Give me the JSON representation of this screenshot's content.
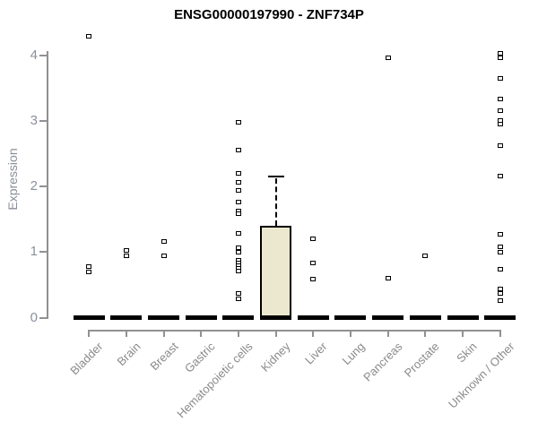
{
  "chart_data": {
    "type": "box",
    "title": "ENSG00000197990 - ZNF734P",
    "ylabel": "Expression",
    "xlabel": "",
    "ylim": [
      0,
      4
    ],
    "yticks": [
      0,
      1,
      2,
      3,
      4
    ],
    "grid": false,
    "categories": [
      "Bladder",
      "Brain",
      "Breast",
      "Gastric",
      "Hematopoietic cells",
      "Kidney",
      "Liver",
      "Lung",
      "Pancreas",
      "Prostate",
      "Skin",
      "Unknown / Other"
    ],
    "boxes": [
      {
        "category": "Bladder",
        "q1": 0,
        "median": 0,
        "q3": 0,
        "whisker_low": 0,
        "whisker_high": 0,
        "outliers": [
          4.29,
          0.78,
          0.7
        ]
      },
      {
        "category": "Brain",
        "q1": 0,
        "median": 0,
        "q3": 0,
        "whisker_low": 0,
        "whisker_high": 0,
        "outliers": [
          1.03,
          0.95
        ]
      },
      {
        "category": "Breast",
        "q1": 0,
        "median": 0,
        "q3": 0,
        "whisker_low": 0,
        "whisker_high": 0,
        "outliers": [
          1.16,
          0.94
        ]
      },
      {
        "category": "Gastric",
        "q1": 0,
        "median": 0,
        "q3": 0,
        "whisker_low": 0,
        "whisker_high": 0,
        "outliers": []
      },
      {
        "category": "Hematopoietic cells",
        "q1": 0,
        "median": 0,
        "q3": 0,
        "whisker_low": 0,
        "whisker_high": 0,
        "outliers": [
          2.98,
          2.56,
          2.2,
          2.06,
          1.94,
          1.76,
          1.63,
          1.59,
          1.29,
          1.07,
          1.0,
          0.88,
          0.83,
          0.79,
          0.75,
          0.71,
          0.37,
          0.29
        ]
      },
      {
        "category": "Kidney",
        "q1": 0,
        "median": 0,
        "q3": 1.4,
        "whisker_low": 0,
        "whisker_high": 2.16,
        "outliers": []
      },
      {
        "category": "Liver",
        "q1": 0,
        "median": 0,
        "q3": 0,
        "whisker_low": 0,
        "whisker_high": 0,
        "outliers": [
          1.21,
          0.84,
          0.59
        ]
      },
      {
        "category": "Lung",
        "q1": 0,
        "median": 0,
        "q3": 0,
        "whisker_low": 0,
        "whisker_high": 0,
        "outliers": []
      },
      {
        "category": "Pancreas",
        "q1": 0,
        "median": 0,
        "q3": 0,
        "whisker_low": 0,
        "whisker_high": 0,
        "outliers": [
          3.96,
          0.6
        ]
      },
      {
        "category": "Prostate",
        "q1": 0,
        "median": 0,
        "q3": 0,
        "whisker_low": 0,
        "whisker_high": 0,
        "outliers": [
          0.94
        ]
      },
      {
        "category": "Skin",
        "q1": 0,
        "median": 0,
        "q3": 0,
        "whisker_low": 0,
        "whisker_high": 0,
        "outliers": []
      },
      {
        "category": "Unknown / Other",
        "q1": 0,
        "median": 0,
        "q3": 0,
        "whisker_low": 0,
        "whisker_high": 0,
        "outliers": [
          4.04,
          3.97,
          3.65,
          3.34,
          3.16,
          3.01,
          2.95,
          2.63,
          2.16,
          1.27,
          1.08,
          1.0,
          0.74,
          0.44,
          0.37,
          0.26
        ]
      }
    ]
  },
  "colors": {
    "background": "#ffffff",
    "title": "#000000",
    "axis": "#919191",
    "y_tick_label": "#8a909c",
    "x_tick_label": "#8a8a8a",
    "box_fill": "#ece8cf",
    "box_border": "#000000",
    "median_bar": "#000000",
    "whisker": "#000000",
    "marker_border": "#000000",
    "marker_fill": "#ffffff"
  }
}
